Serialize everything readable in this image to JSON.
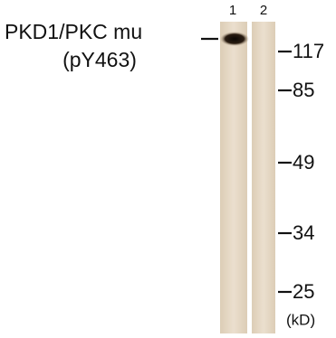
{
  "header": {
    "title": [
      "PKD1/PKC mu",
      "(pY463)"
    ]
  },
  "lanes": [
    "1",
    "2"
  ],
  "markers": [
    "117",
    "85",
    "49",
    "34",
    "25"
  ],
  "unit": "(kD)"
}
